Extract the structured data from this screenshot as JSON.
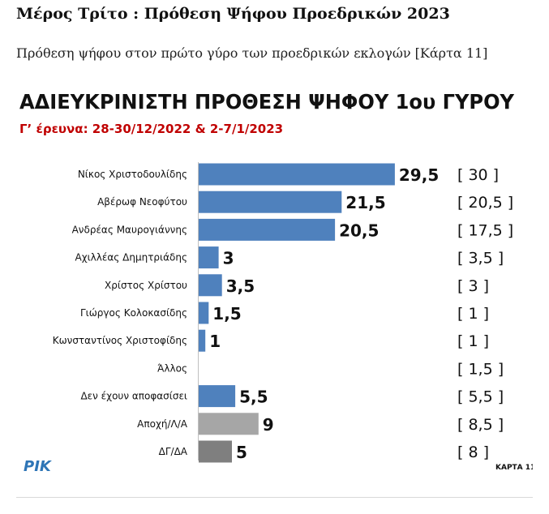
{
  "page": {
    "title": "Μέρος Τρίτο : Πρόθεση Ψήφου Προεδρικών 2023",
    "subtitle": "Πρόθεση ψήφου στον πρώτο γύρο των προεδρικών εκλογών [Κάρτα 11]"
  },
  "chart_data": {
    "type": "bar",
    "orientation": "horizontal",
    "title": "ΑΔΙΕΥΚΡΙΝΙΣΤΗ ΠΡΟΘΕΣΗ ΨΗΦΟΥ 1ου ΓΥΡΟΥ",
    "subtitle": "Γ’ έρευνα: 28-30/12/2022 & 2-7/1/2023",
    "categories": [
      "Νίκος Χριστοδουλίδης",
      "Αβέρωφ Νεοφύτου",
      "Ανδρέας Μαυρογιάννης",
      "Αχιλλέας Δημητριάδης",
      "Χρίστος Χρίστου",
      "Γιώργος Κολοκασίδης",
      "Κωνσταντίνος Χριστοφίδης",
      "Άλλος",
      "Δεν έχουν αποφασίσει",
      "Αποχή/Λ/Α",
      "ΔΓ/ΔΑ"
    ],
    "values": [
      29.5,
      21.5,
      20.5,
      3,
      3.5,
      1.5,
      1,
      0,
      5.5,
      9,
      5
    ],
    "value_labels": [
      "29,5",
      "21,5",
      "20,5",
      "3",
      "3,5",
      "1,5",
      "1",
      "",
      "5,5",
      "9",
      "5"
    ],
    "previous_labels": [
      "[ 30 ]",
      "[ 20,5 ]",
      "[ 17,5 ]",
      "[ 3,5 ]",
      "[ 3 ]",
      "[ 1 ]",
      "[ 1 ]",
      "[ 1,5 ]",
      "[ 5,5 ]",
      "[ 8,5 ]",
      "[ 8 ]"
    ],
    "bar_colors": [
      "#4f81bd",
      "#4f81bd",
      "#4f81bd",
      "#4f81bd",
      "#4f81bd",
      "#4f81bd",
      "#4f81bd",
      "#4f81bd",
      "#4f81bd",
      "#a6a6a6",
      "#7f7f7f"
    ],
    "xlim": [
      0,
      30
    ],
    "grid": false,
    "legend": "none",
    "logo": "ΡΙΚ",
    "card_label": "ΚΑΡΤΑ 11"
  },
  "colors": {
    "title": "#111111",
    "subtitle_red": "#c00000",
    "bar_blue": "#4f81bd",
    "bar_lightgray": "#a6a6a6",
    "bar_darkgray": "#7f7f7f",
    "logo_blue": "#2e75b6"
  }
}
